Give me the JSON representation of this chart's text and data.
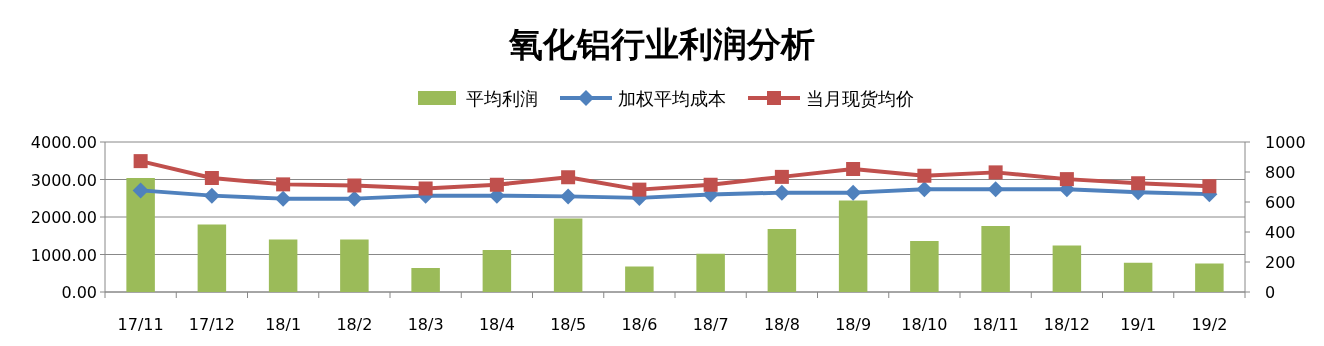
{
  "chart_data": {
    "type": "line",
    "title": "氧化铝行业利润分析",
    "categories": [
      "17/11",
      "17/12",
      "18/1",
      "18/2",
      "18/3",
      "18/4",
      "18/5",
      "18/6",
      "18/7",
      "18/8",
      "18/9",
      "18/10",
      "18/11",
      "18/12",
      "19/1",
      "19/2"
    ],
    "series": [
      {
        "name": "平均利润",
        "type": "bar",
        "axis": "y2",
        "color": "#9bbb59",
        "values": [
          760,
          450,
          350,
          350,
          160,
          280,
          490,
          170,
          255,
          420,
          610,
          340,
          440,
          310,
          195,
          190
        ]
      },
      {
        "name": "加权平均成本",
        "marker": "diamond",
        "color": "#4f81bd",
        "values": [
          2710,
          2570,
          2490,
          2490,
          2570,
          2570,
          2550,
          2510,
          2600,
          2650,
          2650,
          2740,
          2740,
          2740,
          2660,
          2610
        ]
      },
      {
        "name": "当月现货均价",
        "marker": "square",
        "color": "#c0504d",
        "values": [
          3490,
          3040,
          2870,
          2840,
          2760,
          2860,
          3060,
          2730,
          2860,
          3070,
          3280,
          3100,
          3190,
          3010,
          2900,
          2820
        ]
      }
    ],
    "ylim": [
      0,
      4000
    ],
    "yticks": [
      {
        "value": 0,
        "label": "0.00"
      },
      {
        "value": 1000,
        "label": "1000.00"
      },
      {
        "value": 2000,
        "label": "2000.00"
      },
      {
        "value": 3000,
        "label": "3000.00"
      },
      {
        "value": 4000,
        "label": "4000.00"
      }
    ],
    "y2lim": [
      0,
      1000
    ],
    "y2ticks": [
      0,
      200,
      400,
      600,
      800,
      1000
    ],
    "grid": "y",
    "legend": "top"
  }
}
